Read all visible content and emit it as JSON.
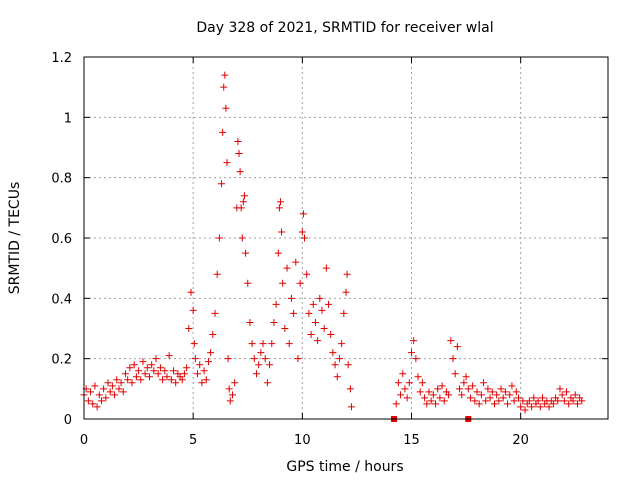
{
  "chart_data": {
    "type": "scatter",
    "title": "Day 328 of 2021, SRMTID for receiver wlal",
    "xlabel": "GPS time / hours",
    "ylabel": "SRMTID / TECUs",
    "xlim": [
      0,
      24
    ],
    "ylim": [
      0,
      1.2
    ],
    "xticks": [
      0,
      5,
      10,
      15,
      20
    ],
    "yticks": [
      0,
      0.2,
      0.4,
      0.6,
      0.8,
      1,
      1.2
    ],
    "xtick_labels": [
      "0",
      "5",
      "10",
      "15",
      "20"
    ],
    "ytick_labels": [
      "0",
      "0.2",
      "0.4",
      "0.6",
      "0.8",
      "1",
      "1.2"
    ],
    "grid": true,
    "marker": "plus",
    "color": "#e00000",
    "series": [
      {
        "name": "SRMTID",
        "points": [
          [
            0.0,
            0.08
          ],
          [
            0.1,
            0.1
          ],
          [
            0.2,
            0.06
          ],
          [
            0.3,
            0.09
          ],
          [
            0.4,
            0.05
          ],
          [
            0.5,
            0.11
          ],
          [
            0.6,
            0.04
          ],
          [
            0.7,
            0.08
          ],
          [
            0.8,
            0.06
          ],
          [
            0.9,
            0.1
          ],
          [
            1.0,
            0.07
          ],
          [
            1.1,
            0.12
          ],
          [
            1.2,
            0.09
          ],
          [
            1.3,
            0.11
          ],
          [
            1.4,
            0.08
          ],
          [
            1.5,
            0.13
          ],
          [
            1.6,
            0.1
          ],
          [
            1.7,
            0.12
          ],
          [
            1.8,
            0.09
          ],
          [
            1.9,
            0.15
          ],
          [
            2.0,
            0.13
          ],
          [
            2.1,
            0.17
          ],
          [
            2.2,
            0.12
          ],
          [
            2.3,
            0.18
          ],
          [
            2.4,
            0.14
          ],
          [
            2.5,
            0.16
          ],
          [
            2.6,
            0.13
          ],
          [
            2.7,
            0.19
          ],
          [
            2.8,
            0.15
          ],
          [
            2.9,
            0.17
          ],
          [
            3.0,
            0.14
          ],
          [
            3.1,
            0.18
          ],
          [
            3.2,
            0.16
          ],
          [
            3.3,
            0.2
          ],
          [
            3.4,
            0.15
          ],
          [
            3.5,
            0.17
          ],
          [
            3.6,
            0.13
          ],
          [
            3.7,
            0.16
          ],
          [
            3.8,
            0.14
          ],
          [
            3.9,
            0.21
          ],
          [
            4.0,
            0.13
          ],
          [
            4.1,
            0.16
          ],
          [
            4.2,
            0.12
          ],
          [
            4.3,
            0.15
          ],
          [
            4.4,
            0.14
          ],
          [
            4.5,
            0.13
          ],
          [
            4.6,
            0.15
          ],
          [
            4.7,
            0.17
          ],
          [
            4.8,
            0.3
          ],
          [
            4.9,
            0.42
          ],
          [
            5.0,
            0.36
          ],
          [
            5.05,
            0.25
          ],
          [
            5.1,
            0.2
          ],
          [
            5.2,
            0.15
          ],
          [
            5.3,
            0.18
          ],
          [
            5.4,
            0.12
          ],
          [
            5.5,
            0.16
          ],
          [
            5.6,
            0.13
          ],
          [
            5.7,
            0.19
          ],
          [
            5.8,
            0.22
          ],
          [
            5.9,
            0.28
          ],
          [
            6.0,
            0.35
          ],
          [
            6.1,
            0.48
          ],
          [
            6.2,
            0.6
          ],
          [
            6.3,
            0.78
          ],
          [
            6.35,
            0.95
          ],
          [
            6.4,
            1.1
          ],
          [
            6.45,
            1.14
          ],
          [
            6.5,
            1.03
          ],
          [
            6.55,
            0.85
          ],
          [
            6.6,
            0.2
          ],
          [
            6.65,
            0.1
          ],
          [
            6.7,
            0.06
          ],
          [
            6.8,
            0.08
          ],
          [
            6.9,
            0.12
          ],
          [
            7.0,
            0.7
          ],
          [
            7.05,
            0.92
          ],
          [
            7.1,
            0.88
          ],
          [
            7.15,
            0.82
          ],
          [
            7.2,
            0.7
          ],
          [
            7.25,
            0.6
          ],
          [
            7.3,
            0.72
          ],
          [
            7.35,
            0.74
          ],
          [
            7.4,
            0.55
          ],
          [
            7.5,
            0.45
          ],
          [
            7.6,
            0.32
          ],
          [
            7.7,
            0.25
          ],
          [
            7.8,
            0.2
          ],
          [
            7.9,
            0.15
          ],
          [
            8.0,
            0.18
          ],
          [
            8.1,
            0.22
          ],
          [
            8.2,
            0.25
          ],
          [
            8.3,
            0.2
          ],
          [
            8.4,
            0.12
          ],
          [
            8.5,
            0.18
          ],
          [
            8.6,
            0.25
          ],
          [
            8.7,
            0.32
          ],
          [
            8.8,
            0.38
          ],
          [
            8.9,
            0.55
          ],
          [
            8.95,
            0.7
          ],
          [
            9.0,
            0.72
          ],
          [
            9.05,
            0.62
          ],
          [
            9.1,
            0.45
          ],
          [
            9.2,
            0.3
          ],
          [
            9.3,
            0.5
          ],
          [
            9.4,
            0.25
          ],
          [
            9.5,
            0.4
          ],
          [
            9.6,
            0.35
          ],
          [
            9.7,
            0.52
          ],
          [
            9.8,
            0.2
          ],
          [
            9.9,
            0.45
          ],
          [
            10.0,
            0.62
          ],
          [
            10.05,
            0.68
          ],
          [
            10.1,
            0.6
          ],
          [
            10.2,
            0.48
          ],
          [
            10.3,
            0.35
          ],
          [
            10.4,
            0.28
          ],
          [
            10.5,
            0.38
          ],
          [
            10.6,
            0.32
          ],
          [
            10.7,
            0.26
          ],
          [
            10.8,
            0.4
          ],
          [
            10.9,
            0.36
          ],
          [
            11.0,
            0.3
          ],
          [
            11.1,
            0.5
          ],
          [
            11.2,
            0.38
          ],
          [
            11.3,
            0.28
          ],
          [
            11.4,
            0.22
          ],
          [
            11.5,
            0.18
          ],
          [
            11.6,
            0.14
          ],
          [
            11.7,
            0.2
          ],
          [
            11.8,
            0.25
          ],
          [
            11.9,
            0.35
          ],
          [
            12.0,
            0.42
          ],
          [
            12.05,
            0.48
          ],
          [
            12.1,
            0.18
          ],
          [
            12.2,
            0.1
          ],
          [
            12.25,
            0.04
          ],
          [
            14.3,
            0.05
          ],
          [
            14.4,
            0.12
          ],
          [
            14.5,
            0.08
          ],
          [
            14.6,
            0.15
          ],
          [
            14.7,
            0.1
          ],
          [
            14.8,
            0.07
          ],
          [
            14.9,
            0.12
          ],
          [
            15.0,
            0.22
          ],
          [
            15.1,
            0.26
          ],
          [
            15.2,
            0.2
          ],
          [
            15.3,
            0.14
          ],
          [
            15.4,
            0.09
          ],
          [
            15.5,
            0.12
          ],
          [
            15.6,
            0.07
          ],
          [
            15.7,
            0.05
          ],
          [
            15.8,
            0.09
          ],
          [
            15.9,
            0.06
          ],
          [
            16.0,
            0.08
          ],
          [
            16.1,
            0.05
          ],
          [
            16.2,
            0.1
          ],
          [
            16.3,
            0.07
          ],
          [
            16.4,
            0.11
          ],
          [
            16.5,
            0.06
          ],
          [
            16.6,
            0.09
          ],
          [
            16.7,
            0.08
          ],
          [
            16.8,
            0.26
          ],
          [
            16.9,
            0.2
          ],
          [
            17.0,
            0.15
          ],
          [
            17.1,
            0.24
          ],
          [
            17.2,
            0.1
          ],
          [
            17.3,
            0.08
          ],
          [
            17.4,
            0.12
          ],
          [
            17.5,
            0.14
          ],
          [
            17.6,
            0.1
          ],
          [
            17.7,
            0.07
          ],
          [
            17.8,
            0.11
          ],
          [
            17.9,
            0.06
          ],
          [
            18.0,
            0.09
          ],
          [
            18.1,
            0.05
          ],
          [
            18.2,
            0.08
          ],
          [
            18.3,
            0.12
          ],
          [
            18.4,
            0.06
          ],
          [
            18.5,
            0.1
          ],
          [
            18.6,
            0.07
          ],
          [
            18.7,
            0.09
          ],
          [
            18.8,
            0.05
          ],
          [
            18.9,
            0.08
          ],
          [
            19.0,
            0.06
          ],
          [
            19.1,
            0.1
          ],
          [
            19.2,
            0.07
          ],
          [
            19.3,
            0.09
          ],
          [
            19.4,
            0.05
          ],
          [
            19.5,
            0.08
          ],
          [
            19.6,
            0.11
          ],
          [
            19.7,
            0.06
          ],
          [
            19.8,
            0.09
          ],
          [
            19.9,
            0.07
          ],
          [
            20.0,
            0.04
          ],
          [
            20.1,
            0.06
          ],
          [
            20.2,
            0.03
          ],
          [
            20.3,
            0.05
          ],
          [
            20.4,
            0.06
          ],
          [
            20.5,
            0.04
          ],
          [
            20.6,
            0.07
          ],
          [
            20.7,
            0.05
          ],
          [
            20.8,
            0.06
          ],
          [
            20.9,
            0.04
          ],
          [
            21.0,
            0.07
          ],
          [
            21.1,
            0.05
          ],
          [
            21.2,
            0.06
          ],
          [
            21.3,
            0.04
          ],
          [
            21.4,
            0.06
          ],
          [
            21.5,
            0.05
          ],
          [
            21.6,
            0.07
          ],
          [
            21.7,
            0.06
          ],
          [
            21.8,
            0.1
          ],
          [
            21.9,
            0.08
          ],
          [
            22.0,
            0.06
          ],
          [
            22.1,
            0.09
          ],
          [
            22.2,
            0.05
          ],
          [
            22.3,
            0.07
          ],
          [
            22.4,
            0.06
          ],
          [
            22.5,
            0.08
          ],
          [
            22.6,
            0.05
          ],
          [
            22.7,
            0.07
          ],
          [
            22.8,
            0.06
          ]
        ]
      }
    ],
    "square_points": [
      [
        14.2,
        0.0
      ],
      [
        17.6,
        0.0
      ]
    ]
  }
}
